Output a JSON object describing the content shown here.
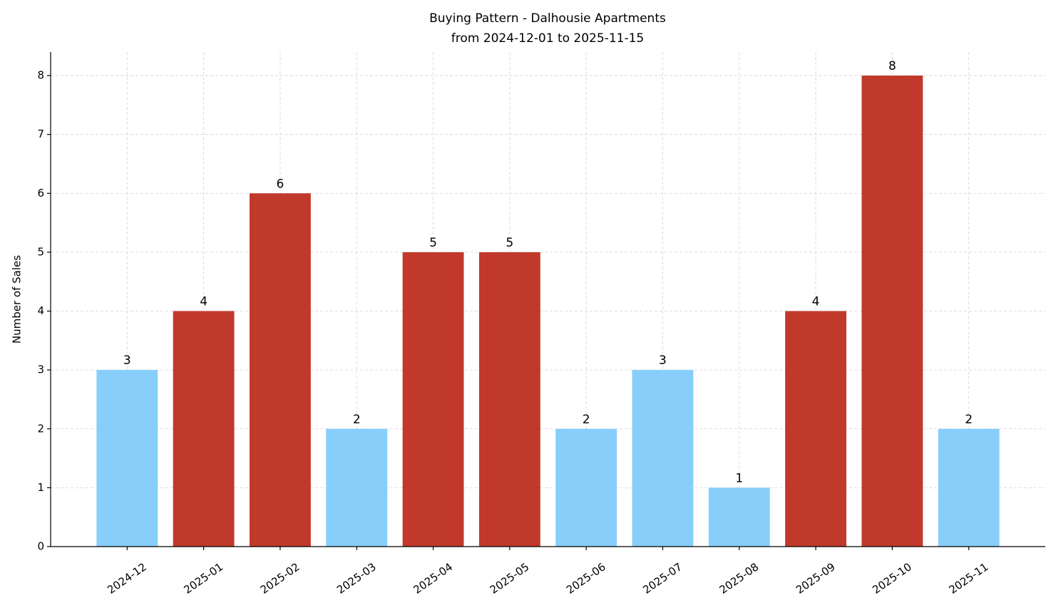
{
  "chart_data": {
    "type": "bar",
    "title": "Buying Pattern - Dalhousie Apartments",
    "subtitle": "from 2024-12-01 to 2025-11-15",
    "y_label": "Number of Sales",
    "categories": [
      "2024-12",
      "2025-01",
      "2025-02",
      "2025-03",
      "2025-04",
      "2025-05",
      "2025-06",
      "2025-07",
      "2025-08",
      "2025-09",
      "2025-10",
      "2025-11"
    ],
    "values": [
      3,
      4,
      6,
      2,
      5,
      5,
      2,
      3,
      1,
      4,
      8,
      2
    ],
    "colors": [
      "#87cefa",
      "#c0392b",
      "#c0392b",
      "#87cefa",
      "#c0392b",
      "#c0392b",
      "#87cefa",
      "#87cefa",
      "#87cefa",
      "#c0392b",
      "#c0392b",
      "#87cefa"
    ],
    "ylim": [
      0,
      8.4
    ],
    "yticks": [
      0,
      1,
      2,
      3,
      4,
      5,
      6,
      7,
      8
    ],
    "grid": true,
    "show_value_labels": true
  }
}
